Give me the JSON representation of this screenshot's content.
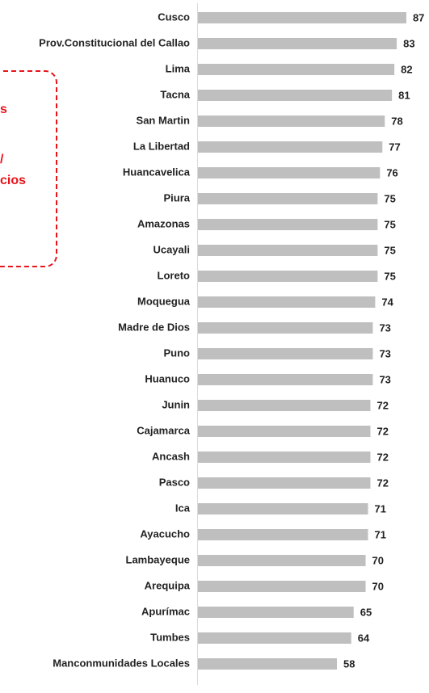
{
  "chart_data": {
    "type": "bar",
    "orientation": "horizontal",
    "categories": [
      "Cusco",
      "Prov.Constitucional del Callao",
      "Lima",
      "Tacna",
      "San Martin",
      "La Libertad",
      "Huancavelica",
      "Piura",
      "Amazonas",
      "Ucayali",
      "Loreto",
      "Moquegua",
      "Madre de Dios",
      "Puno",
      "Huanuco",
      "Junin",
      "Cajamarca",
      "Ancash",
      "Pasco",
      "Ica",
      "Ayacucho",
      "Lambayeque",
      "Arequipa",
      "Apurímac",
      "Tumbes",
      "Manconmunidades Locales"
    ],
    "values": [
      87,
      83,
      82,
      81,
      78,
      77,
      76,
      75,
      75,
      75,
      75,
      74,
      73,
      73,
      73,
      72,
      72,
      72,
      72,
      71,
      71,
      70,
      70,
      65,
      64,
      58
    ],
    "color": "#bfbfbf",
    "annotations": [
      "s",
      "/",
      "cios"
    ]
  }
}
